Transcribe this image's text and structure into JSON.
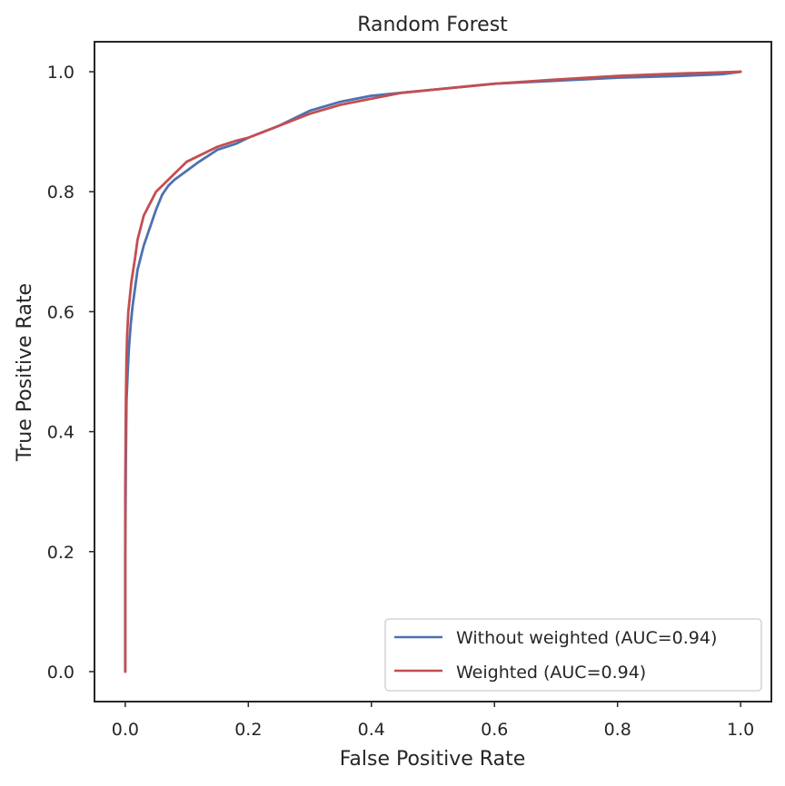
{
  "chart_data": {
    "type": "line",
    "title": "Random Forest",
    "xlabel": "False Positive Rate",
    "ylabel": "True Positive Rate",
    "xlim": [
      -0.05,
      1.05
    ],
    "ylim": [
      -0.05,
      1.05
    ],
    "xticks": [
      0.0,
      0.2,
      0.4,
      0.6,
      0.8,
      1.0
    ],
    "yticks": [
      0.0,
      0.2,
      0.4,
      0.6,
      0.8,
      1.0
    ],
    "xtick_labels": [
      "0.0",
      "0.2",
      "0.4",
      "0.6",
      "0.8",
      "1.0"
    ],
    "ytick_labels": [
      "0.0",
      "0.2",
      "0.4",
      "0.6",
      "0.8",
      "1.0"
    ],
    "grid": false,
    "legend_position": "lower-right",
    "series": [
      {
        "name": "Without weighted (AUC=0.94)",
        "color": "#4c72b0",
        "x": [
          0.0,
          0.0,
          0.001,
          0.002,
          0.004,
          0.006,
          0.009,
          0.012,
          0.016,
          0.02,
          0.025,
          0.03,
          0.035,
          0.04,
          0.05,
          0.06,
          0.07,
          0.08,
          0.1,
          0.12,
          0.15,
          0.18,
          0.2,
          0.25,
          0.3,
          0.35,
          0.4,
          0.45,
          0.5,
          0.55,
          0.6,
          0.7,
          0.8,
          0.9,
          0.95,
          0.97,
          1.0
        ],
        "y": [
          0.0,
          0.2,
          0.35,
          0.45,
          0.5,
          0.54,
          0.58,
          0.61,
          0.64,
          0.67,
          0.69,
          0.71,
          0.725,
          0.74,
          0.77,
          0.795,
          0.81,
          0.82,
          0.835,
          0.85,
          0.87,
          0.88,
          0.89,
          0.91,
          0.935,
          0.95,
          0.96,
          0.965,
          0.97,
          0.975,
          0.98,
          0.985,
          0.99,
          0.993,
          0.995,
          0.996,
          1.0
        ]
      },
      {
        "name": "Weighted (AUC=0.94)",
        "color": "#c44e52",
        "x": [
          0.0,
          0.0,
          0.001,
          0.002,
          0.003,
          0.005,
          0.007,
          0.01,
          0.013,
          0.016,
          0.02,
          0.025,
          0.03,
          0.035,
          0.04,
          0.05,
          0.06,
          0.07,
          0.08,
          0.1,
          0.12,
          0.15,
          0.18,
          0.2,
          0.25,
          0.3,
          0.35,
          0.4,
          0.45,
          0.5,
          0.6,
          0.7,
          0.8,
          0.9,
          1.0
        ],
        "y": [
          0.0,
          0.3,
          0.45,
          0.52,
          0.56,
          0.6,
          0.62,
          0.65,
          0.67,
          0.69,
          0.72,
          0.74,
          0.76,
          0.77,
          0.78,
          0.8,
          0.81,
          0.82,
          0.83,
          0.85,
          0.86,
          0.875,
          0.885,
          0.89,
          0.91,
          0.93,
          0.945,
          0.955,
          0.965,
          0.97,
          0.98,
          0.987,
          0.993,
          0.997,
          1.0
        ]
      }
    ]
  }
}
